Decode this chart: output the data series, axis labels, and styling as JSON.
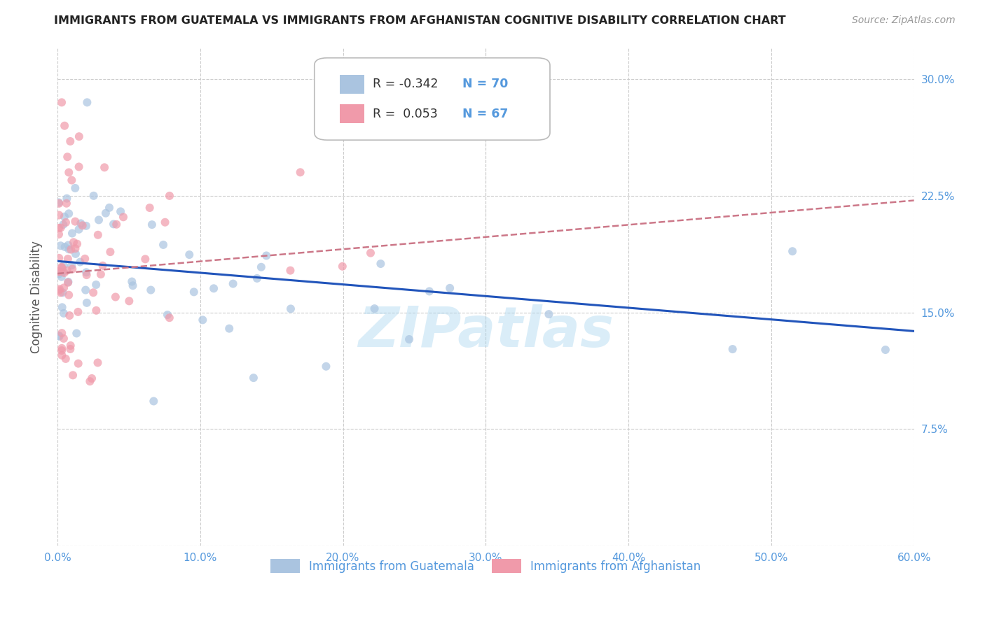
{
  "title": "IMMIGRANTS FROM GUATEMALA VS IMMIGRANTS FROM AFGHANISTAN COGNITIVE DISABILITY CORRELATION CHART",
  "source": "Source: ZipAtlas.com",
  "ylabel": "Cognitive Disability",
  "xlim": [
    0.0,
    0.6
  ],
  "ylim": [
    0.0,
    0.32
  ],
  "xticks": [
    0.0,
    0.1,
    0.2,
    0.3,
    0.4,
    0.5,
    0.6
  ],
  "xticklabels": [
    "0.0%",
    "10.0%",
    "20.0%",
    "30.0%",
    "40.0%",
    "50.0%",
    "60.0%"
  ],
  "yticks": [
    0.0,
    0.075,
    0.15,
    0.225,
    0.3
  ],
  "yticklabels_right": [
    "",
    "7.5%",
    "15.0%",
    "22.5%",
    "30.0%"
  ],
  "grid_color": "#cccccc",
  "background_color": "#ffffff",
  "watermark": "ZIPatlas",
  "legend_R1": "-0.342",
  "legend_N1": "70",
  "legend_R2": "0.053",
  "legend_N2": "67",
  "color_blue": "#aac4e0",
  "color_pink": "#f09aaa",
  "line_blue": "#2255bb",
  "line_pink": "#cc7788",
  "title_color": "#222222",
  "axis_color": "#5599dd",
  "scatter_alpha": 0.7,
  "marker_size": 75,
  "blue_line_y0": 0.183,
  "blue_line_y1": 0.138,
  "pink_line_y0": 0.175,
  "pink_line_y1": 0.222
}
